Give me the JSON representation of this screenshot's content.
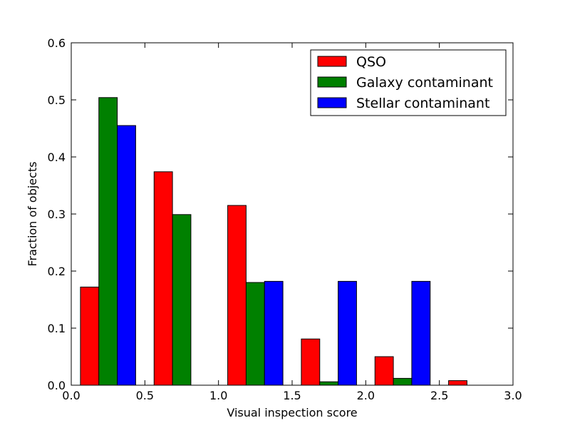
{
  "chart_data": {
    "type": "bar",
    "xlabel": "Visual inspection score",
    "ylabel": "Fraction of objects",
    "xlim": [
      0.0,
      3.0
    ],
    "ylim": [
      0.0,
      0.6
    ],
    "bin_centers": [
      0.25,
      0.75,
      1.25,
      1.75,
      2.25,
      2.75
    ],
    "bar_width": 0.5,
    "x_ticks": [
      "0.0",
      "0.5",
      "1.0",
      "1.5",
      "2.0",
      "2.5",
      "3.0"
    ],
    "y_ticks": [
      "0.0",
      "0.1",
      "0.2",
      "0.3",
      "0.4",
      "0.5",
      "0.6"
    ],
    "series": [
      {
        "name": "QSO",
        "color": "#ff0000",
        "values": [
          0.172,
          0.374,
          0.315,
          0.081,
          0.05,
          0.008
        ]
      },
      {
        "name": "Galaxy contaminant",
        "color": "#008000",
        "values": [
          0.504,
          0.299,
          0.18,
          0.006,
          0.012,
          0.0
        ]
      },
      {
        "name": "Stellar contaminant",
        "color": "#0000ff",
        "values": [
          0.455,
          0.0,
          0.182,
          0.182,
          0.182,
          0.0
        ]
      }
    ],
    "legend": {
      "position": "top-right"
    },
    "grid": false
  }
}
